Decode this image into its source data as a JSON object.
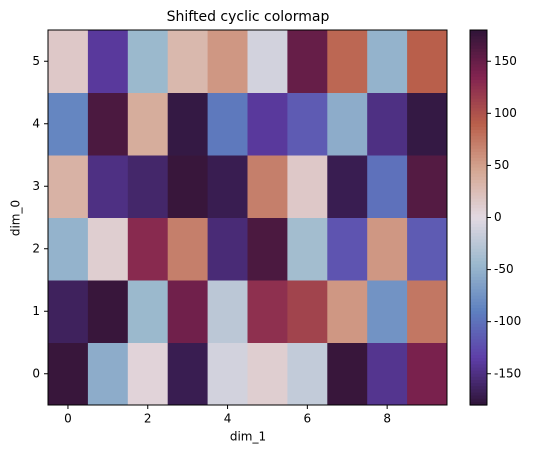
{
  "chart_data": {
    "type": "heatmap",
    "title": "Shifted cyclic colormap",
    "xlabel": "dim_1",
    "ylabel": "dim_0",
    "colormap": "twilight_shifted",
    "z": [
      [
        175,
        -55,
        5,
        -170,
        -10,
        10,
        -20,
        175,
        -145,
        140
      ],
      [
        -165,
        175,
        -45,
        145,
        -25,
        125,
        110,
        55,
        -75,
        75
      ],
      [
        -50,
        10,
        130,
        70,
        -155,
        165,
        -40,
        -120,
        55,
        -115
      ],
      [
        35,
        -150,
        -160,
        175,
        -170,
        70,
        15,
        -170,
        -100,
        160
      ],
      [
        -85,
        165,
        40,
        -175,
        -95,
        -140,
        -115,
        -55,
        -150,
        -175
      ],
      [
        15,
        -140,
        -45,
        30,
        55,
        -10,
        150,
        85,
        -50,
        90
      ]
    ],
    "xlim": [
      -0.5,
      9.5
    ],
    "xticks": [
      0,
      2,
      4,
      6,
      8
    ],
    "ylim": [
      -0.5,
      5.5
    ],
    "yticks": [
      0,
      1,
      2,
      3,
      4,
      5
    ],
    "clim": [
      -180,
      180
    ],
    "cticks": [
      -150,
      -100,
      -50,
      0,
      50,
      100,
      150
    ]
  }
}
